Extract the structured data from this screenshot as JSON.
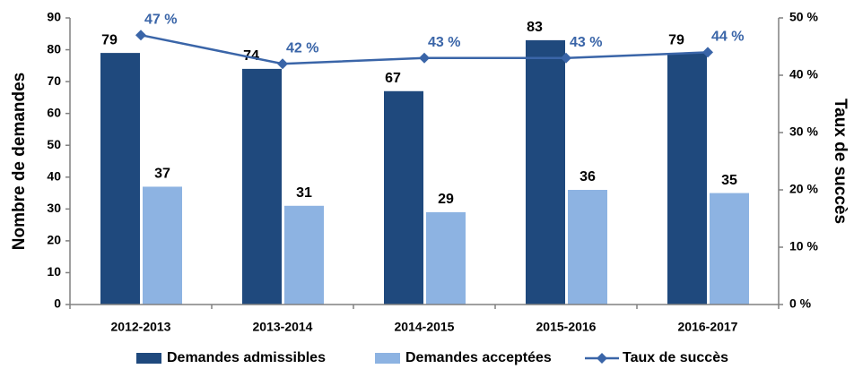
{
  "chart_data": {
    "type": "bar",
    "categories": [
      "2012-2013",
      "2013-2014",
      "2014-2015",
      "2015-2016",
      "2016-2017"
    ],
    "ylabel": "Nombre de demandes",
    "y2label": "Taux de succès",
    "ylim": [
      0,
      90
    ],
    "yticks": [
      0,
      10,
      20,
      30,
      40,
      50,
      60,
      70,
      80,
      90
    ],
    "y2lim": [
      0,
      50
    ],
    "y2ticks": [
      {
        "value": 0,
        "label": "0 %"
      },
      {
        "value": 10,
        "label": "10 %"
      },
      {
        "value": 20,
        "label": "20 %"
      },
      {
        "value": 30,
        "label": "30 %"
      },
      {
        "value": 40,
        "label": "40 %"
      },
      {
        "value": 50,
        "label": "50 %"
      }
    ],
    "series": [
      {
        "name": "Demandes admissibles",
        "color": "#1f497d",
        "values": [
          79,
          74,
          67,
          83,
          79
        ]
      },
      {
        "name": "Demandes acceptées",
        "color": "#8db3e2",
        "values": [
          37,
          31,
          29,
          36,
          35
        ]
      },
      {
        "name": "Taux de succès",
        "type": "line",
        "axis": "y2",
        "color": "#3a65a8",
        "values": [
          47,
          42,
          43,
          43,
          44
        ],
        "value_labels": [
          "47 %",
          "42 %",
          "43 %",
          "43 %",
          "44 %"
        ]
      }
    ],
    "legend": "bottom",
    "grid": false
  }
}
